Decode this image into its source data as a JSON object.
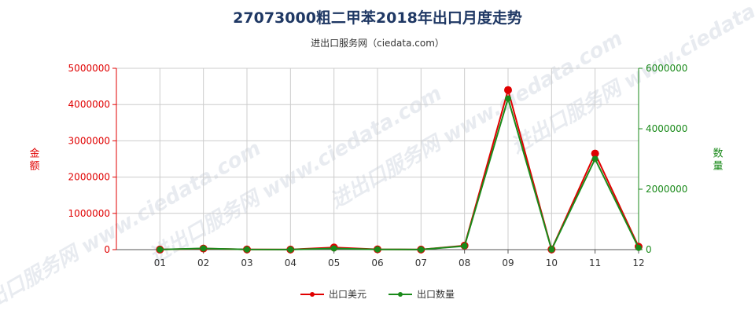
{
  "title": "27073000粗二甲苯2018年出口月度走势",
  "subtitle": "进出口服务网（ciedata.com）",
  "watermark": "进出口服务网 www.ciedata.com",
  "colors": {
    "usd": "#e00000",
    "qty": "#1a8a1a",
    "grid": "#cccccc",
    "axis": "#555555",
    "title": "#1f3864",
    "watermark": "#cdd5e0"
  },
  "legend": {
    "usd_label": "出口美元",
    "qty_label": "出口数量"
  },
  "chart_data": {
    "type": "line",
    "categories": [
      "01",
      "02",
      "03",
      "04",
      "05",
      "06",
      "07",
      "08",
      "09",
      "10",
      "11",
      "12"
    ],
    "y_left": {
      "label": "金额",
      "ylim": [
        0,
        5000000
      ],
      "ticks": [
        0,
        1000000,
        2000000,
        3000000,
        4000000,
        5000000
      ]
    },
    "y_right": {
      "label": "数量",
      "ylim": [
        0,
        6000000
      ],
      "ticks": [
        0,
        2000000,
        4000000,
        6000000
      ]
    },
    "grid": true,
    "legend_position": "bottom",
    "series": [
      {
        "name": "出口美元",
        "axis": "left",
        "values": [
          2000,
          30000,
          5000,
          3000,
          60000,
          8000,
          3000,
          110000,
          4400000,
          5000,
          2650000,
          80000
        ]
      },
      {
        "name": "出口数量",
        "axis": "right",
        "values": [
          3000,
          40000,
          5000,
          3000,
          40000,
          8000,
          3000,
          120000,
          5000000,
          5000,
          3000000,
          60000
        ]
      }
    ]
  }
}
